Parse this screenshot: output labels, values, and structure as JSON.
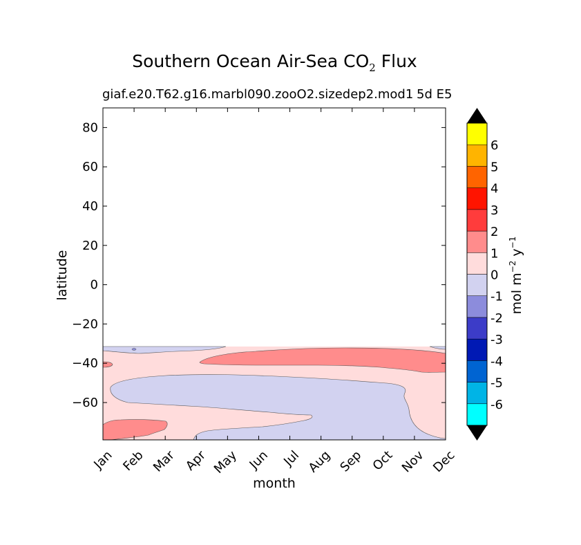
{
  "chart_data": {
    "type": "contour",
    "title": "Southern Ocean Air-Sea CO",
    "title_subscript": "2",
    "title_suffix": " Flux",
    "subtitle": "giaf.e20.T62.g16.marbl090.zooO2.sizedep2.mod1",
    "subtitle_right": "5d E5",
    "xlabel": "month",
    "ylabel": "latitude",
    "x_categories": [
      "Jan",
      "Feb",
      "Mar",
      "Apr",
      "May",
      "Jun",
      "Jul",
      "Aug",
      "Sep",
      "Oct",
      "Nov",
      "Dec"
    ],
    "ylim": [
      -79,
      90
    ],
    "yticks": [
      80,
      60,
      40,
      20,
      0,
      -20,
      -40,
      -60
    ],
    "ytick_labels": [
      "80",
      "60",
      "40",
      "20",
      "0",
      "−20",
      "−40",
      "−60"
    ],
    "data_lat_north_edge": -32,
    "colorbar": {
      "label": "mol m",
      "label_sup1": "−2",
      "label_mid": " y",
      "label_sup2": "−1",
      "tick_labels": [
        "-6",
        "-5",
        "-4",
        "-3",
        "-2",
        "-1",
        "0",
        "1",
        "2",
        "3",
        "4",
        "5",
        "6"
      ],
      "colors": [
        "#00ffff",
        "#00b4e6",
        "#0064d2",
        "#0019b4",
        "#3c3cc8",
        "#8c8cdc",
        "#d2d2f0",
        "#ffdcdc",
        "#ff8c8c",
        "#ff3c3c",
        "#ff1400",
        "#ff6400",
        "#ffb400",
        "#ffff00"
      ],
      "extend_color": "#000000"
    },
    "regions": [
      {
        "level": "0 to 1",
        "color": "#ffdcdc",
        "description": "background positive flux band"
      },
      {
        "level": "-1 to 0",
        "color": "#d2d2f0",
        "description": "large negative flux region Feb-Nov, -45 to -79"
      },
      {
        "level": "-1 to 0",
        "color": "#d2d2f0",
        "description": "thin band at northern edge Jan-May and Dec"
      },
      {
        "level": "1 to 2",
        "color": "#ff8c8c",
        "description": "positive band May-Dec around -36 to -45"
      },
      {
        "level": "1 to 2",
        "color": "#ff8c8c",
        "description": "positive patch Jan-Mar near -70 to -79"
      },
      {
        "level": "1 to 2",
        "color": "#ff8c8c",
        "description": "small patch Jan near -41"
      },
      {
        "level": "-2 to -1",
        "color": "#8c8cdc",
        "description": "tiny patch Feb near -33"
      }
    ]
  }
}
